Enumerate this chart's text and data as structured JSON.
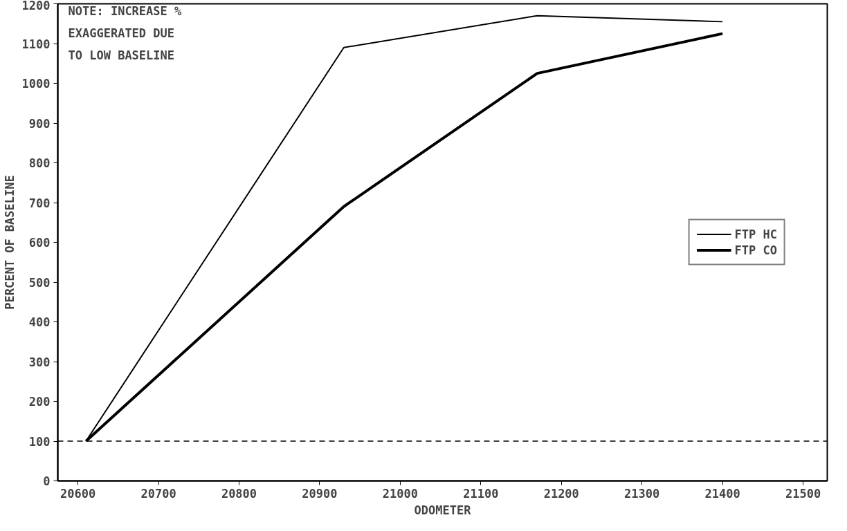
{
  "chart_data": {
    "type": "line",
    "xlabel": "ODOMETER",
    "ylabel": "PERCENT OF BASELINE",
    "x": [
      20610,
      20930,
      21170,
      21400
    ],
    "series": [
      {
        "name": "FTP HC",
        "color": "#000000",
        "values": [
          100,
          1090,
          1170,
          1155
        ]
      },
      {
        "name": "FTP CO",
        "color": "#000000",
        "values": [
          100,
          690,
          1025,
          1125
        ]
      }
    ],
    "xlim": [
      20575,
      21530
    ],
    "xticks": [
      20600,
      20700,
      20800,
      20900,
      21000,
      21100,
      21200,
      21300,
      21400,
      21500
    ],
    "ylim": [
      0,
      1200
    ],
    "yticks": [
      0,
      100,
      200,
      300,
      400,
      500,
      600,
      700,
      800,
      900,
      1000,
      1100,
      1200
    ],
    "ref_lines": [
      {
        "axis": "y",
        "value": 100,
        "line_style": "dashed",
        "color": "#000000"
      }
    ],
    "annotations": [
      "NOTE: INCREASE %\nEXAGGERATED DUE\n TO LOW BASELINE"
    ],
    "legend": "right",
    "grid": false,
    "marker": "none",
    "line_style": "solid"
  }
}
